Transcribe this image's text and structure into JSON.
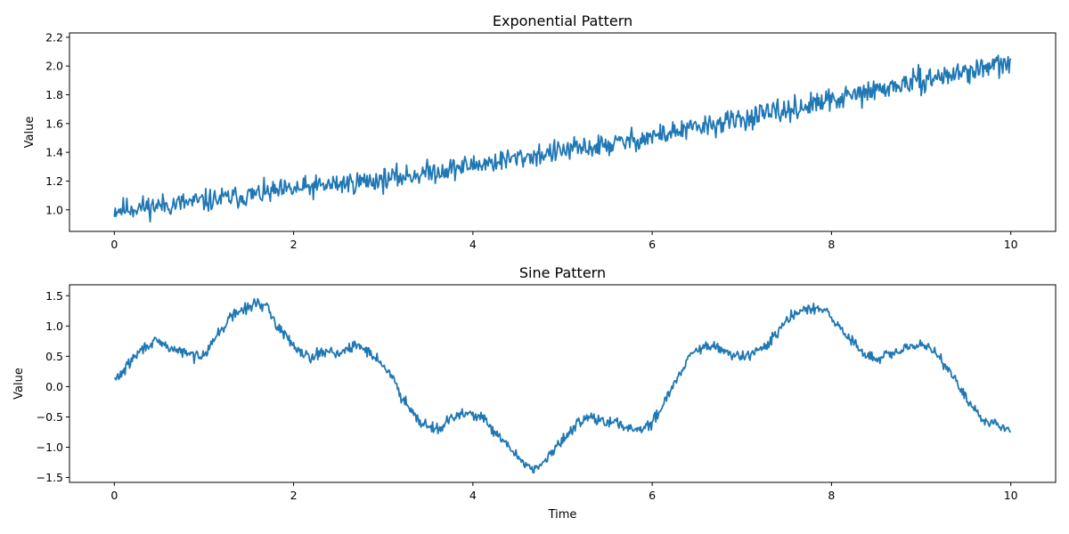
{
  "chart_data": [
    {
      "type": "line",
      "title": "Exponential Pattern",
      "xlabel": "",
      "ylabel": "Value",
      "xlim": [
        -0.5,
        10.5
      ],
      "ylim": [
        0.85,
        2.23
      ],
      "xticks": [
        0,
        2,
        4,
        6,
        8,
        10
      ],
      "xtick_labels": [
        "0",
        "2",
        "4",
        "6",
        "8",
        "10"
      ],
      "yticks": [
        1.0,
        1.2,
        1.4,
        1.6,
        1.8,
        2.0,
        2.2
      ],
      "ytick_labels": [
        "1.0",
        "1.2",
        "1.4",
        "1.6",
        "1.8",
        "2.0",
        "2.2"
      ],
      "grid": false,
      "color": "#1f77b4",
      "series": [
        {
          "x": [
            0,
            0.5,
            1,
            1.5,
            2,
            2.5,
            3,
            3.5,
            4,
            4.5,
            5,
            5.5,
            6,
            6.5,
            7,
            7.5,
            8,
            8.5,
            9,
            9.5,
            10
          ],
          "values": [
            1.0,
            1.03,
            1.06,
            1.1,
            1.14,
            1.18,
            1.21,
            1.26,
            1.31,
            1.36,
            1.41,
            1.45,
            1.51,
            1.57,
            1.63,
            1.69,
            1.76,
            1.83,
            1.9,
            1.96,
            2.02
          ]
        }
      ]
    },
    {
      "type": "line",
      "title": "Sine Pattern",
      "xlabel": "Time",
      "ylabel": "Value",
      "xlim": [
        -0.5,
        10.5
      ],
      "ylim": [
        -1.58,
        1.68
      ],
      "xticks": [
        0,
        2,
        4,
        6,
        8,
        10
      ],
      "xtick_labels": [
        "0",
        "2",
        "4",
        "6",
        "8",
        "10"
      ],
      "yticks": [
        -1.5,
        -1.0,
        -0.5,
        0.0,
        0.5,
        1.0,
        1.5
      ],
      "ytick_labels": [
        "−1.5",
        "−1.0",
        "−0.5",
        "0.0",
        "0.5",
        "1.0",
        "1.5"
      ],
      "grid": false,
      "color": "#1f77b4",
      "series": [
        {
          "x": [
            0,
            0.1,
            0.2,
            0.3,
            0.4,
            0.5,
            0.6,
            0.7,
            0.8,
            0.9,
            1.0,
            1.1,
            1.2,
            1.3,
            1.4,
            1.5,
            1.6,
            1.7,
            1.8,
            1.9,
            2.0,
            2.1,
            2.2,
            2.3,
            2.4,
            2.5,
            2.6,
            2.7,
            2.8,
            2.9,
            3.0,
            3.1,
            3.2,
            3.3,
            3.4,
            3.5,
            3.6,
            3.7,
            3.8,
            3.9,
            4.0,
            4.1,
            4.2,
            4.3,
            4.4,
            4.5,
            4.6,
            4.7,
            4.8,
            4.9,
            5.0,
            5.1,
            5.2,
            5.3,
            5.4,
            5.5,
            5.6,
            5.7,
            5.8,
            5.9,
            6.0,
            6.1,
            6.2,
            6.3,
            6.4,
            6.5,
            6.6,
            6.7,
            6.8,
            6.9,
            7.0,
            7.1,
            7.2,
            7.3,
            7.4,
            7.5,
            7.6,
            7.7,
            7.8,
            7.9,
            8.0,
            8.1,
            8.2,
            8.3,
            8.4,
            8.5,
            8.6,
            8.7,
            8.8,
            8.9,
            9.0,
            9.1,
            9.2,
            9.3,
            9.4,
            9.5,
            9.6,
            9.7,
            9.8,
            9.9,
            10.0
          ],
          "values": [
            0.1,
            0.25,
            0.45,
            0.6,
            0.72,
            0.72,
            0.65,
            0.6,
            0.55,
            0.5,
            0.55,
            0.75,
            0.95,
            1.15,
            1.25,
            1.3,
            1.4,
            1.3,
            1.05,
            0.85,
            0.7,
            0.55,
            0.5,
            0.55,
            0.6,
            0.55,
            0.6,
            0.68,
            0.62,
            0.5,
            0.35,
            0.15,
            -0.15,
            -0.35,
            -0.55,
            -0.65,
            -0.7,
            -0.6,
            -0.5,
            -0.45,
            -0.45,
            -0.5,
            -0.7,
            -0.85,
            -1.0,
            -1.15,
            -1.3,
            -1.35,
            -1.25,
            -1.05,
            -0.9,
            -0.7,
            -0.55,
            -0.5,
            -0.55,
            -0.6,
            -0.6,
            -0.65,
            -0.7,
            -0.7,
            -0.6,
            -0.35,
            -0.05,
            0.2,
            0.45,
            0.6,
            0.65,
            0.65,
            0.6,
            0.5,
            0.5,
            0.55,
            0.6,
            0.7,
            0.9,
            1.1,
            1.2,
            1.25,
            1.3,
            1.25,
            1.15,
            0.95,
            0.8,
            0.65,
            0.5,
            0.45,
            0.5,
            0.55,
            0.6,
            0.65,
            0.7,
            0.65,
            0.5,
            0.3,
            0.05,
            -0.2,
            -0.4,
            -0.55,
            -0.6,
            -0.65,
            -0.7
          ]
        }
      ]
    }
  ]
}
